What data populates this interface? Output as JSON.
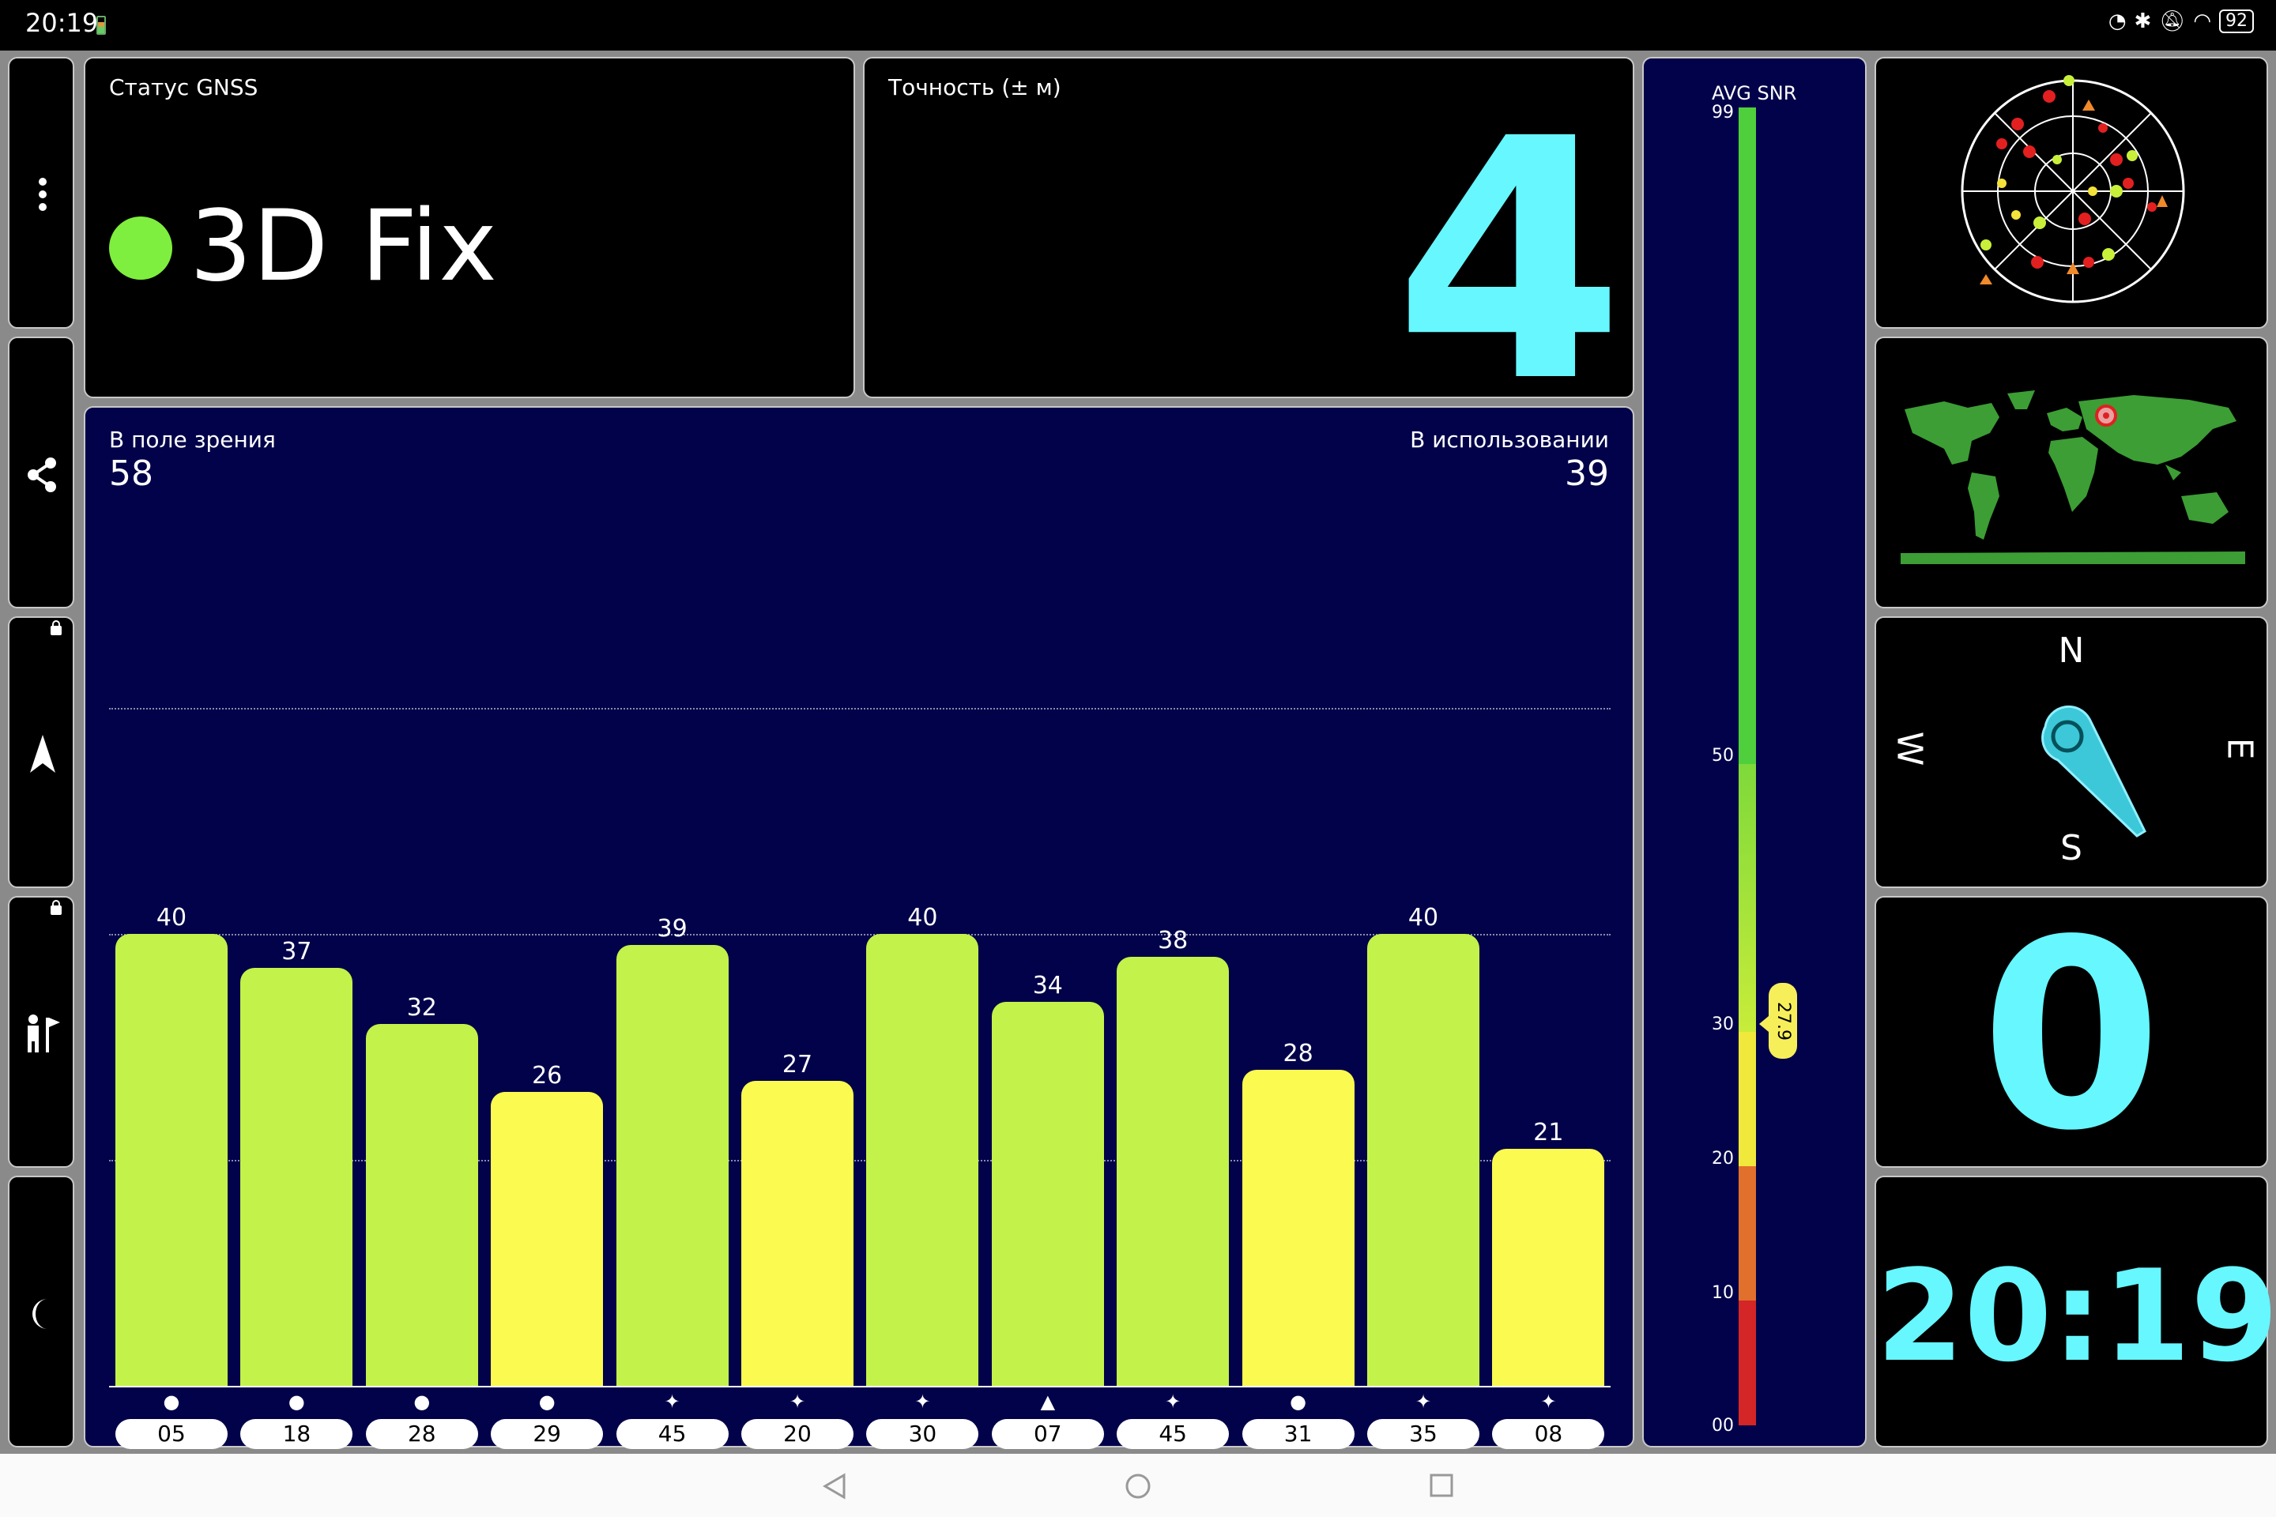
{
  "status_bar": {
    "time": "20:19",
    "battery": "92"
  },
  "gnss_status": {
    "title": "Статус GNSS",
    "value": "3D Fix",
    "dot_color": "#7eef3e"
  },
  "accuracy": {
    "title": "Точность (± м)",
    "value": "4"
  },
  "satellites": {
    "in_view_label": "В поле зрения",
    "in_view": "58",
    "in_use_label": "В использовании",
    "in_use": "39",
    "bars": [
      {
        "id": "05",
        "snr": 40,
        "symbol": "●"
      },
      {
        "id": "18",
        "snr": 37,
        "symbol": "●"
      },
      {
        "id": "28",
        "snr": 32,
        "symbol": "●"
      },
      {
        "id": "29",
        "snr": 26,
        "symbol": "●"
      },
      {
        "id": "45",
        "snr": 39,
        "symbol": "✦"
      },
      {
        "id": "20",
        "snr": 27,
        "symbol": "✦"
      },
      {
        "id": "30",
        "snr": 40,
        "symbol": "✦"
      },
      {
        "id": "07",
        "snr": 34,
        "symbol": "▲"
      },
      {
        "id": "45",
        "snr": 38,
        "symbol": "✦"
      },
      {
        "id": "31",
        "snr": 28,
        "symbol": "●"
      },
      {
        "id": "35",
        "snr": 40,
        "symbol": "✦"
      },
      {
        "id": "08",
        "snr": 21,
        "symbol": "✦"
      }
    ],
    "scroll_position": 0.2
  },
  "snr_gauge": {
    "title": "AVG SNR",
    "ticks": [
      "99",
      "50",
      "30",
      "20",
      "10",
      "00"
    ],
    "current": "27.9"
  },
  "compass": {
    "n": "N",
    "e": "E",
    "s": "S",
    "w": "W"
  },
  "counter_value": "0",
  "clock_value": "20:19",
  "icons": {
    "menu": "more-vertical-icon",
    "share": "share-icon",
    "nav": "navigation-arrow-icon",
    "person": "person-flag-icon",
    "night": "moon-icon"
  }
}
